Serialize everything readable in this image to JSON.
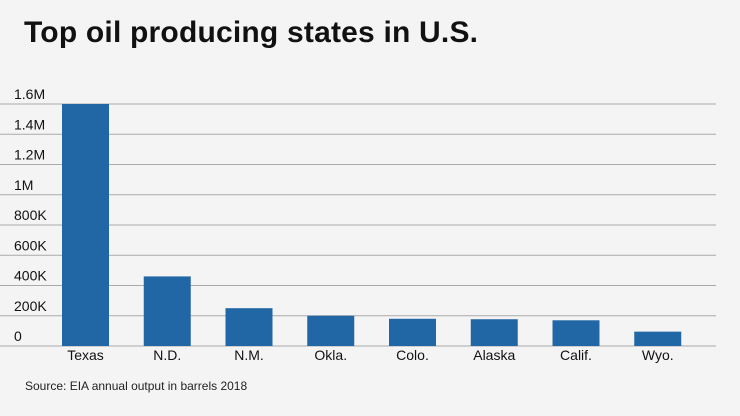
{
  "title": "Top oil producing states in U.S.",
  "source": "Source: EIA annual output in barrels 2018",
  "colors": {
    "bar": "#2267a5",
    "grid": "#aaaaaa",
    "background": "#f4f4f4"
  },
  "chart_data": {
    "type": "bar",
    "title": "Top oil producing states in U.S.",
    "xlabel": "",
    "ylabel": "",
    "categories": [
      "Texas",
      "N.D.",
      "N.M.",
      "Okla.",
      "Colo.",
      "Alaska",
      "Calif.",
      "Wyo."
    ],
    "values": [
      1600000,
      460000,
      250000,
      200000,
      180000,
      177000,
      170000,
      95000
    ],
    "ylim": [
      0,
      1600000
    ],
    "yticks": [
      0,
      200000,
      400000,
      600000,
      800000,
      1000000,
      1200000,
      1400000,
      1600000
    ],
    "ytick_labels": [
      "0",
      "200K",
      "400K",
      "600K",
      "800K",
      "1M",
      "1.2M",
      "1.4M",
      "1.6M"
    ],
    "grid": true,
    "legend": "none"
  }
}
